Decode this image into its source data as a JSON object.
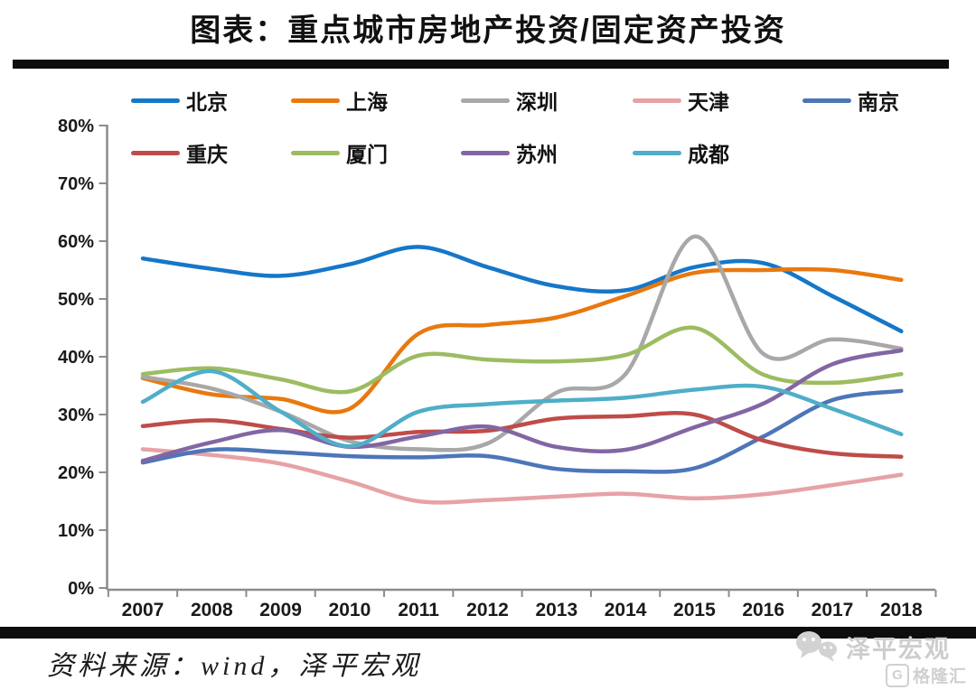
{
  "title": "图表：重点城市房地产投资/固定资产投资",
  "footer": {
    "source_label": "资料来源：wind，泽平宏观"
  },
  "watermark": {
    "brand": "泽平宏观",
    "logo_letter": "G",
    "logo_text": "格隆汇"
  },
  "axes": {
    "y_tick_labels": [
      "0%",
      "10%",
      "20%",
      "30%",
      "40%",
      "50%",
      "60%",
      "70%",
      "80%"
    ],
    "x_tick_labels": [
      "2007",
      "2008",
      "2009",
      "2010",
      "2011",
      "2012",
      "2013",
      "2014",
      "2015",
      "2016",
      "2017",
      "2018"
    ]
  },
  "chart_data": {
    "type": "line",
    "title": "图表：重点城市房地产投资/固定资产投资",
    "x": [
      2007,
      2008,
      2009,
      2010,
      2011,
      2012,
      2013,
      2014,
      2015,
      2016,
      2017,
      2018
    ],
    "ylim": [
      0,
      80
    ],
    "y_tick_step": 10,
    "y_unit": "%",
    "grid": false,
    "legend_position": "top",
    "line_smoothing": true,
    "series": [
      {
        "id": "beijing",
        "name": "北京",
        "color": "#1577C8",
        "values": [
          57.0,
          55.2,
          54.0,
          56.0,
          59.0,
          55.5,
          52.2,
          51.5,
          55.5,
          56.2,
          50.5,
          44.4
        ]
      },
      {
        "id": "shanghai",
        "name": "上海",
        "color": "#E8790F",
        "values": [
          36.3,
          33.5,
          32.7,
          31.0,
          44.0,
          45.5,
          46.8,
          50.5,
          54.5,
          55.0,
          55.0,
          53.3
        ]
      },
      {
        "id": "shenzhen",
        "name": "深圳",
        "color": "#A8A8A8",
        "values": [
          36.5,
          34.5,
          30.5,
          25.4,
          24.0,
          25.0,
          33.8,
          37.0,
          60.8,
          40.5,
          43.0,
          41.4
        ]
      },
      {
        "id": "tianjin",
        "name": "天津",
        "color": "#E7A2A6",
        "values": [
          24.0,
          23.0,
          21.5,
          18.4,
          15.0,
          15.2,
          15.8,
          16.3,
          15.5,
          16.2,
          17.8,
          19.6
        ]
      },
      {
        "id": "nanjing",
        "name": "南京",
        "color": "#4D76B9",
        "values": [
          21.7,
          23.9,
          23.5,
          22.8,
          22.6,
          22.8,
          20.6,
          20.2,
          20.7,
          26.2,
          32.5,
          34.1
        ]
      },
      {
        "id": "chongqing",
        "name": "重庆",
        "color": "#BF4C48",
        "values": [
          28.0,
          29.0,
          27.5,
          26.0,
          27.0,
          27.2,
          29.3,
          29.7,
          30.0,
          25.5,
          23.3,
          22.7
        ]
      },
      {
        "id": "xiamen",
        "name": "厦门",
        "color": "#9DBC61",
        "values": [
          37.0,
          38.0,
          36.1,
          34.0,
          40.2,
          39.5,
          39.2,
          40.3,
          45.0,
          36.9,
          35.5,
          37.0
        ]
      },
      {
        "id": "suzhou",
        "name": "苏州",
        "color": "#8266A4",
        "values": [
          22.0,
          25.2,
          27.3,
          24.4,
          26.2,
          27.9,
          24.4,
          23.9,
          27.8,
          31.9,
          38.7,
          41.1
        ]
      },
      {
        "id": "chengdu",
        "name": "成都",
        "color": "#4FAEC9",
        "values": [
          32.2,
          37.5,
          30.5,
          24.5,
          30.5,
          31.8,
          32.4,
          32.9,
          34.3,
          34.8,
          31.0,
          26.6
        ]
      }
    ]
  }
}
